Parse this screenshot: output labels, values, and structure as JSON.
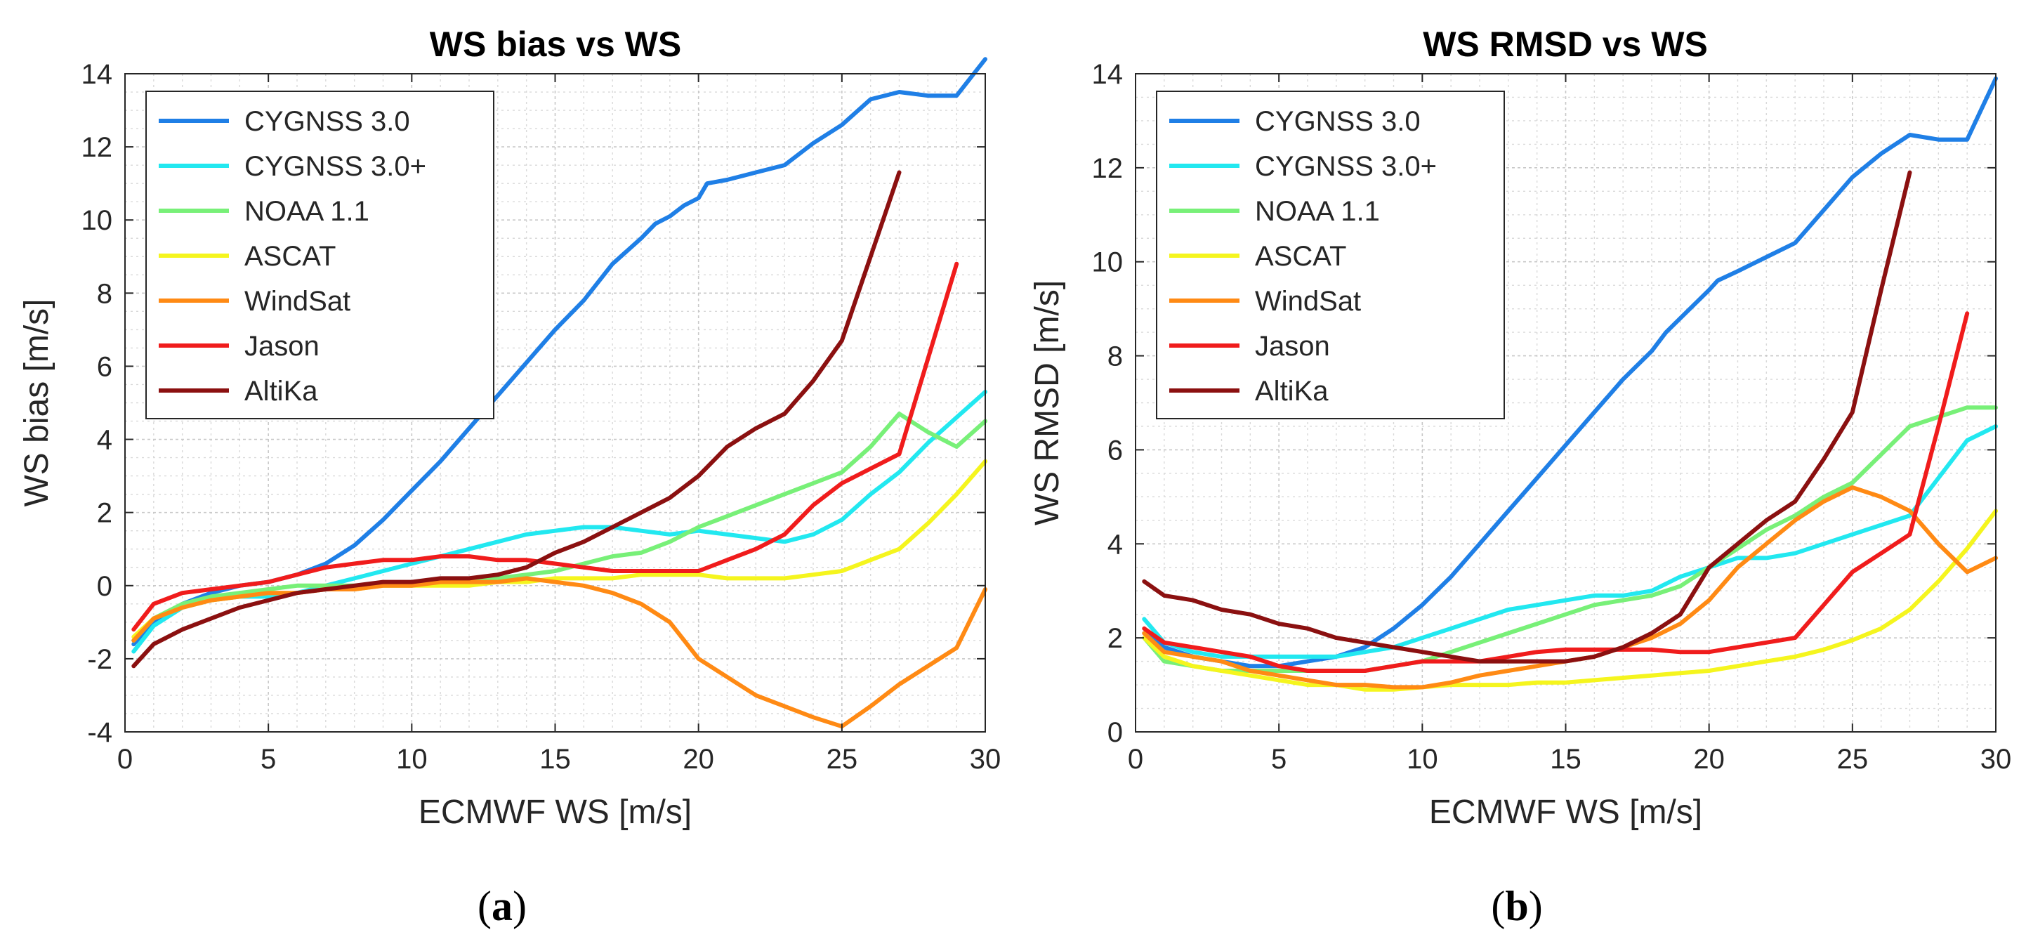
{
  "chart_data": [
    {
      "type": "line",
      "title": "WS bias vs WS",
      "xlabel": "ECMWF WS [m/s]",
      "ylabel": "WS bias [m/s]",
      "xlim": [
        0,
        30
      ],
      "ylim": [
        -4,
        14
      ],
      "xticks": [
        "0",
        "5",
        "10",
        "15",
        "20",
        "25",
        "30"
      ],
      "yticks": [
        "-4",
        "-2",
        "0",
        "2",
        "4",
        "6",
        "8",
        "10",
        "12",
        "14"
      ],
      "grid": true,
      "minor_grid": true,
      "legend_position": "top-left",
      "panel_label": "(a)",
      "series": [
        {
          "name": "CYGNSS 3.0",
          "color": "#1f7fe6",
          "x": [
            0.3,
            1,
            2,
            3,
            4,
            5,
            6,
            7,
            8,
            9,
            10,
            11,
            12,
            13,
            14,
            15,
            16,
            17,
            18,
            18.5,
            19,
            19.5,
            20,
            20.3,
            21,
            22,
            23,
            24,
            25,
            26,
            27,
            28,
            29,
            30
          ],
          "y": [
            -1.6,
            -1.0,
            -0.5,
            -0.2,
            0.0,
            0.1,
            0.3,
            0.6,
            1.1,
            1.8,
            2.6,
            3.4,
            4.3,
            5.2,
            6.1,
            7.0,
            7.8,
            8.8,
            9.5,
            9.9,
            10.1,
            10.4,
            10.6,
            11.0,
            11.1,
            11.3,
            11.5,
            12.1,
            12.6,
            13.3,
            13.5,
            13.4,
            13.4,
            14.4
          ],
          "y_note_units": "read from axis with bias scale"
        },
        {
          "name": "CYGNSS 3.0+",
          "color": "#22e8f0",
          "x": [
            0.3,
            1,
            2,
            3,
            4,
            5,
            6,
            7,
            8,
            9,
            10,
            11,
            12,
            13,
            14,
            15,
            16,
            17,
            18,
            19,
            20,
            21,
            22,
            23,
            24,
            25,
            26,
            27,
            28,
            29,
            30
          ],
          "y": [
            -1.8,
            -1.1,
            -0.6,
            -0.4,
            -0.3,
            -0.3,
            -0.2,
            0.0,
            0.2,
            0.4,
            0.6,
            0.8,
            1.0,
            1.2,
            1.4,
            1.5,
            1.6,
            1.6,
            1.5,
            1.4,
            1.5,
            1.4,
            1.3,
            1.2,
            1.4,
            1.8,
            2.5,
            3.1,
            3.9,
            4.6,
            5.3
          ]
        },
        {
          "name": "NOAA 1.1",
          "color": "#78f078",
          "x": [
            0.3,
            1,
            2,
            3,
            4,
            5,
            6,
            7,
            8,
            9,
            10,
            11,
            12,
            13,
            14,
            15,
            16,
            17,
            18,
            19,
            20,
            21,
            22,
            23,
            24,
            25,
            26,
            27,
            28,
            29,
            30
          ],
          "y": [
            -1.5,
            -0.9,
            -0.5,
            -0.3,
            -0.2,
            -0.1,
            0.0,
            0.0,
            0.0,
            0.0,
            0.0,
            0.1,
            0.1,
            0.2,
            0.3,
            0.4,
            0.6,
            0.8,
            0.9,
            1.2,
            1.6,
            1.9,
            2.2,
            2.5,
            2.8,
            3.1,
            3.8,
            4.7,
            4.2,
            3.8,
            4.5
          ]
        },
        {
          "name": "ASCAT",
          "color": "#f5f51e",
          "x": [
            0.3,
            1,
            2,
            3,
            4,
            5,
            6,
            7,
            8,
            9,
            10,
            11,
            12,
            13,
            14,
            15,
            16,
            17,
            18,
            19,
            20,
            21,
            22,
            23,
            24,
            25,
            26,
            27,
            28,
            29,
            30
          ],
          "y": [
            -1.4,
            -0.9,
            -0.6,
            -0.4,
            -0.3,
            -0.2,
            -0.2,
            -0.1,
            -0.1,
            0.0,
            0.0,
            0.0,
            0.0,
            0.1,
            0.1,
            0.2,
            0.2,
            0.2,
            0.3,
            0.3,
            0.3,
            0.2,
            0.2,
            0.2,
            0.3,
            0.4,
            0.7,
            1.0,
            1.7,
            2.5,
            3.4
          ]
        },
        {
          "name": "WindSat",
          "color": "#ff8a14",
          "x": [
            0.3,
            1,
            2,
            3,
            4,
            5,
            6,
            7,
            8,
            9,
            10,
            11,
            12,
            13,
            14,
            15,
            16,
            17,
            18,
            19,
            20,
            21,
            22,
            23,
            24,
            25,
            26,
            27,
            28,
            29,
            30
          ],
          "y": [
            -1.5,
            -0.9,
            -0.6,
            -0.4,
            -0.3,
            -0.2,
            -0.2,
            -0.1,
            -0.1,
            0.0,
            0.0,
            0.1,
            0.1,
            0.1,
            0.2,
            0.1,
            0.0,
            -0.2,
            -0.5,
            -1.0,
            -2.0,
            -2.5,
            -3.0,
            -3.3,
            -3.6,
            -3.85,
            -3.3,
            -2.7,
            -2.2,
            -1.7,
            -0.1
          ]
        },
        {
          "name": "Jason",
          "color": "#f01c1c",
          "x": [
            0.3,
            1,
            2,
            3,
            4,
            5,
            6,
            7,
            8,
            9,
            10,
            11,
            12,
            13,
            14,
            15,
            16,
            17,
            18,
            19,
            20,
            21,
            22,
            23,
            24,
            25,
            26,
            27,
            28,
            29
          ],
          "y": [
            -1.2,
            -0.5,
            -0.2,
            -0.1,
            0.0,
            0.1,
            0.3,
            0.5,
            0.6,
            0.7,
            0.7,
            0.8,
            0.8,
            0.7,
            0.7,
            0.6,
            0.5,
            0.4,
            0.4,
            0.4,
            0.4,
            0.7,
            1.0,
            1.4,
            2.2,
            2.8,
            3.2,
            3.6,
            6.2,
            8.8
          ]
        },
        {
          "name": "AltiKa",
          "color": "#8b1010",
          "x": [
            0.3,
            1,
            2,
            3,
            4,
            5,
            6,
            7,
            8,
            9,
            10,
            11,
            12,
            13,
            14,
            15,
            16,
            17,
            18,
            19,
            20,
            21,
            22,
            23,
            24,
            25,
            26,
            27
          ],
          "y": [
            -2.2,
            -1.6,
            -1.2,
            -0.9,
            -0.6,
            -0.4,
            -0.2,
            -0.1,
            0.0,
            0.1,
            0.1,
            0.2,
            0.2,
            0.3,
            0.5,
            0.9,
            1.2,
            1.6,
            2.0,
            2.4,
            3.0,
            3.8,
            4.3,
            4.7,
            5.6,
            6.7,
            9.0,
            11.3
          ]
        }
      ]
    },
    {
      "type": "line",
      "title": "WS RMSD vs WS",
      "xlabel": "ECMWF WS [m/s]",
      "ylabel": "WS RMSD [m/s]",
      "xlim": [
        0,
        30
      ],
      "ylim": [
        0,
        14
      ],
      "xticks": [
        "0",
        "5",
        "10",
        "15",
        "20",
        "25",
        "30"
      ],
      "yticks": [
        "0",
        "2",
        "4",
        "6",
        "8",
        "10",
        "12",
        "14"
      ],
      "grid": true,
      "minor_grid": true,
      "legend_position": "top-left",
      "panel_label": "(b)",
      "series": [
        {
          "name": "CYGNSS 3.0",
          "color": "#1f7fe6",
          "x": [
            0.3,
            1,
            2,
            3,
            4,
            5,
            6,
            7,
            8,
            9,
            10,
            11,
            12,
            13,
            14,
            15,
            16,
            17,
            18,
            18.5,
            19,
            19.5,
            20,
            20.3,
            21,
            22,
            23,
            24,
            25,
            26,
            27,
            28,
            29,
            30
          ],
          "y": [
            2.1,
            1.8,
            1.6,
            1.5,
            1.4,
            1.4,
            1.5,
            1.6,
            1.8,
            2.2,
            2.7,
            3.3,
            4.0,
            4.7,
            5.4,
            6.1,
            6.8,
            7.5,
            8.1,
            8.5,
            8.8,
            9.1,
            9.4,
            9.6,
            9.8,
            10.1,
            10.4,
            11.1,
            11.8,
            12.3,
            12.7,
            12.6,
            12.6,
            13.9
          ]
        },
        {
          "name": "CYGNSS 3.0+",
          "color": "#22e8f0",
          "x": [
            0.3,
            1,
            2,
            3,
            4,
            5,
            6,
            7,
            8,
            9,
            10,
            11,
            12,
            13,
            14,
            15,
            16,
            17,
            18,
            19,
            20,
            21,
            22,
            23,
            24,
            25,
            26,
            27,
            28,
            29,
            30
          ],
          "y": [
            2.4,
            1.9,
            1.7,
            1.6,
            1.6,
            1.6,
            1.6,
            1.6,
            1.7,
            1.8,
            2.0,
            2.2,
            2.4,
            2.6,
            2.7,
            2.8,
            2.9,
            2.9,
            3.0,
            3.3,
            3.5,
            3.7,
            3.7,
            3.8,
            4.0,
            4.2,
            4.4,
            4.6,
            5.4,
            6.2,
            6.5
          ]
        },
        {
          "name": "NOAA 1.1",
          "color": "#78f078",
          "x": [
            0.3,
            1,
            2,
            3,
            4,
            5,
            6,
            7,
            8,
            9,
            10,
            11,
            12,
            13,
            14,
            15,
            16,
            17,
            18,
            19,
            20,
            21,
            22,
            23,
            24,
            25,
            26,
            27,
            28,
            29,
            30
          ],
          "y": [
            2.0,
            1.5,
            1.4,
            1.3,
            1.3,
            1.3,
            1.3,
            1.3,
            1.3,
            1.4,
            1.5,
            1.7,
            1.9,
            2.1,
            2.3,
            2.5,
            2.7,
            2.8,
            2.9,
            3.1,
            3.5,
            3.9,
            4.3,
            4.6,
            5.0,
            5.3,
            5.9,
            6.5,
            6.7,
            6.9,
            6.9
          ]
        },
        {
          "name": "ASCAT",
          "color": "#f5f51e",
          "x": [
            0.3,
            1,
            2,
            3,
            4,
            5,
            6,
            7,
            8,
            9,
            10,
            11,
            12,
            13,
            14,
            15,
            16,
            17,
            18,
            19,
            20,
            21,
            22,
            23,
            24,
            25,
            26,
            27,
            28,
            29,
            30
          ],
          "y": [
            2.0,
            1.6,
            1.4,
            1.3,
            1.2,
            1.1,
            1.0,
            1.0,
            0.9,
            0.9,
            0.95,
            1.0,
            1.0,
            1.0,
            1.05,
            1.05,
            1.1,
            1.15,
            1.2,
            1.25,
            1.3,
            1.4,
            1.5,
            1.6,
            1.75,
            1.95,
            2.2,
            2.6,
            3.2,
            3.9,
            4.7
          ]
        },
        {
          "name": "WindSat",
          "color": "#ff8a14",
          "x": [
            0.3,
            1,
            2,
            3,
            4,
            5,
            6,
            7,
            8,
            9,
            10,
            11,
            12,
            13,
            14,
            15,
            16,
            17,
            18,
            19,
            20,
            21,
            22,
            23,
            24,
            25,
            26,
            27,
            28,
            29,
            30
          ],
          "y": [
            2.1,
            1.7,
            1.6,
            1.5,
            1.3,
            1.2,
            1.1,
            1.0,
            1.0,
            0.95,
            0.95,
            1.05,
            1.2,
            1.3,
            1.4,
            1.5,
            1.6,
            1.8,
            2.0,
            2.3,
            2.8,
            3.5,
            4.0,
            4.5,
            4.9,
            5.2,
            5.0,
            4.7,
            4.0,
            3.4,
            3.7
          ]
        },
        {
          "name": "Jason",
          "color": "#f01c1c",
          "x": [
            0.3,
            1,
            2,
            3,
            4,
            5,
            6,
            7,
            8,
            9,
            10,
            11,
            12,
            13,
            14,
            15,
            16,
            17,
            18,
            19,
            20,
            21,
            22,
            23,
            24,
            25,
            26,
            27,
            28,
            29
          ],
          "y": [
            2.2,
            1.9,
            1.8,
            1.7,
            1.6,
            1.4,
            1.3,
            1.3,
            1.3,
            1.4,
            1.5,
            1.5,
            1.5,
            1.6,
            1.7,
            1.75,
            1.75,
            1.75,
            1.75,
            1.7,
            1.7,
            1.8,
            1.9,
            2.0,
            2.7,
            3.4,
            3.8,
            4.2,
            6.5,
            8.9
          ]
        },
        {
          "name": "AltiKa",
          "color": "#8b1010",
          "x": [
            0.3,
            1,
            2,
            3,
            4,
            5,
            6,
            7,
            8,
            9,
            10,
            11,
            12,
            13,
            14,
            15,
            16,
            17,
            18,
            19,
            20,
            21,
            22,
            23,
            24,
            25,
            26,
            27
          ],
          "y": [
            3.2,
            2.9,
            2.8,
            2.6,
            2.5,
            2.3,
            2.2,
            2.0,
            1.9,
            1.8,
            1.7,
            1.6,
            1.5,
            1.5,
            1.5,
            1.5,
            1.6,
            1.8,
            2.1,
            2.5,
            3.5,
            4.0,
            4.5,
            4.9,
            5.8,
            6.8,
            9.4,
            11.9
          ]
        }
      ]
    }
  ]
}
